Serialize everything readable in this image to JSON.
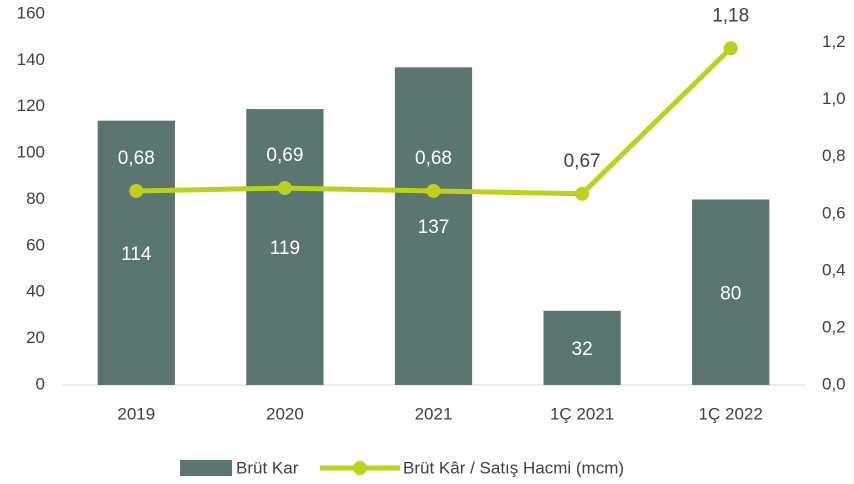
{
  "chart_data": {
    "type": "bar",
    "categories": [
      "2019",
      "2020",
      "2021",
      "1Ç 2021",
      "1Ç 2022"
    ],
    "series": [
      {
        "name": "Brüt Kar",
        "type": "bar",
        "color": "#5b7670",
        "values": [
          114,
          119,
          137,
          32,
          80
        ]
      },
      {
        "name": "Brüt Kâr / Satış Hacmi (mcm)",
        "type": "line",
        "axis": "y2",
        "color": "#bcd21a",
        "values": [
          0.68,
          0.69,
          0.68,
          0.67,
          1.18
        ],
        "value_labels": [
          "0,68",
          "0,69",
          "0,68",
          "0,67",
          "1,18"
        ]
      }
    ],
    "ylim": [
      0,
      160
    ],
    "yticks": [
      0,
      20,
      40,
      60,
      80,
      100,
      120,
      140,
      160
    ],
    "y2lim": [
      0,
      1.3
    ],
    "y2ticks": [
      {
        "value": 0,
        "label": "0,0"
      },
      {
        "value": 0.2,
        "label": "0,2"
      },
      {
        "value": 0.4,
        "label": "0,4"
      },
      {
        "value": 0.6,
        "label": "0,6"
      },
      {
        "value": 0.8,
        "label": "0,8"
      },
      {
        "value": 1.0,
        "label": "1,0"
      },
      {
        "value": 1.2,
        "label": "1,2"
      }
    ],
    "grid": false,
    "legend": "bottom"
  }
}
